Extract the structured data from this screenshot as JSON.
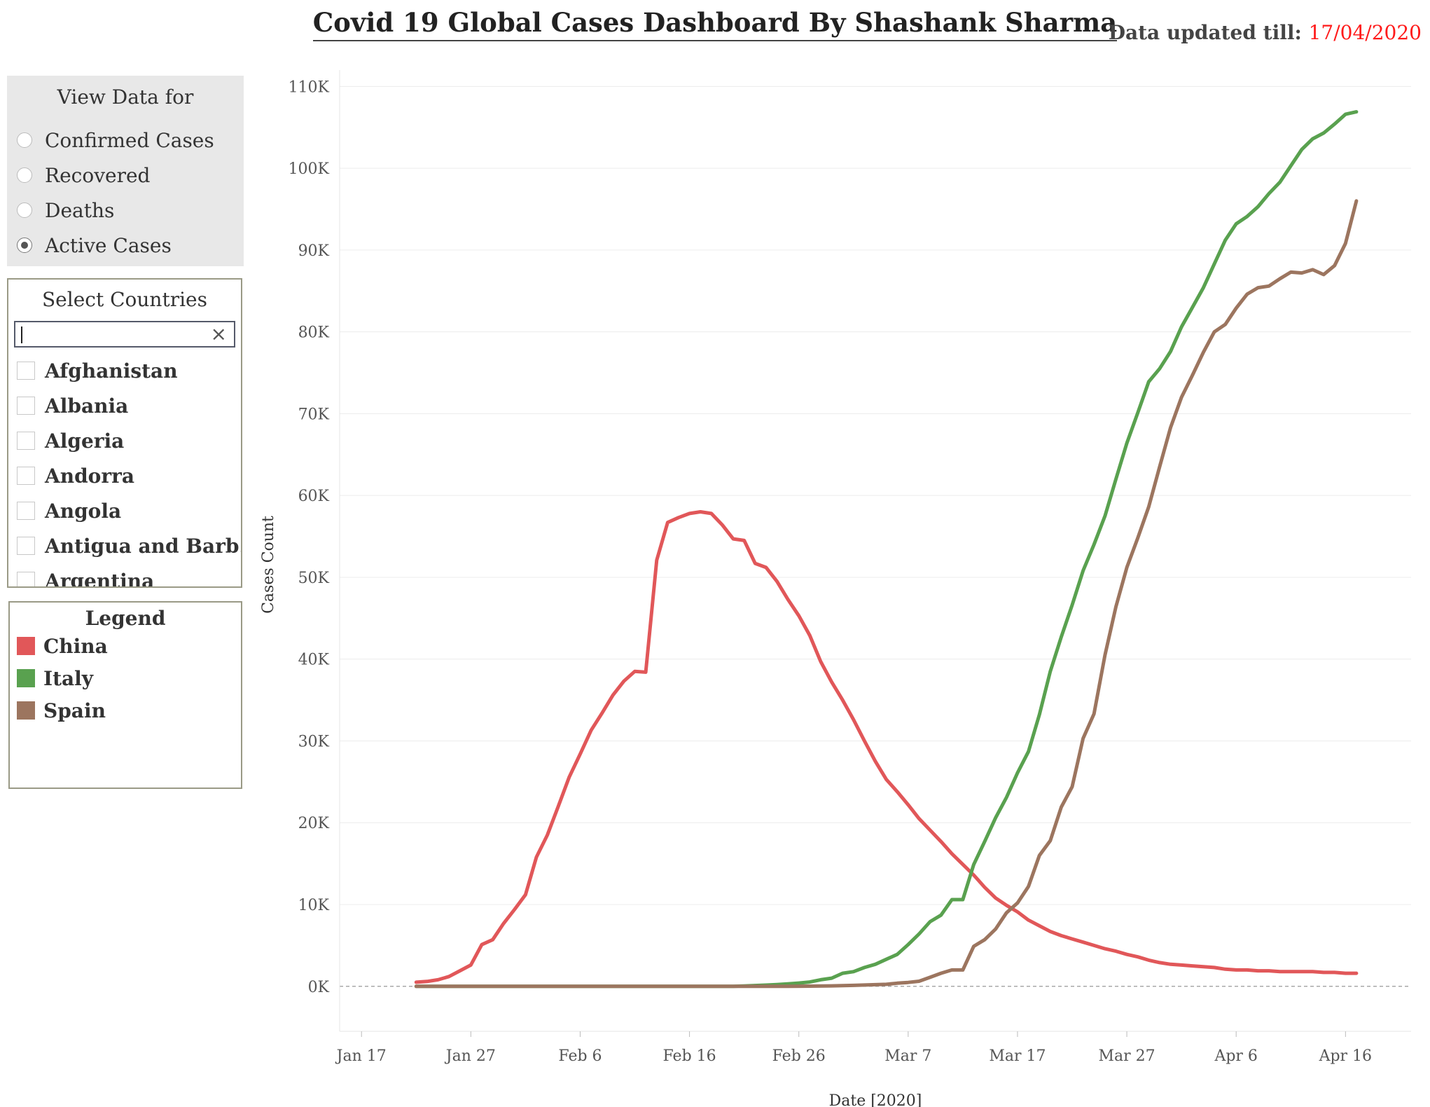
{
  "header": {
    "title": "Covid 19 Global Cases Dashboard By Shashank Sharma",
    "updated_label": "Data updated till:",
    "updated_date": "17/04/2020"
  },
  "view_panel": {
    "title": "View Data for",
    "options": [
      "Confirmed Cases",
      "Recovered",
      "Deaths",
      "Active Cases"
    ],
    "selected": "Active Cases"
  },
  "countries_panel": {
    "title": "Select Countries",
    "search_value": "",
    "clear_icon": "close-icon",
    "items": [
      "Afghanistan",
      "Albania",
      "Algeria",
      "Andorra",
      "Angola",
      "Antigua and Barb…",
      "Argentina"
    ]
  },
  "legend_panel": {
    "title": "Legend",
    "items": [
      {
        "name": "China",
        "color": "#e15759"
      },
      {
        "name": "Italy",
        "color": "#59a14f"
      },
      {
        "name": "Spain",
        "color": "#9c755f"
      }
    ]
  },
  "chart_data": {
    "type": "line",
    "title": "",
    "xlabel": "Date [2020]",
    "ylabel": "Cases Count",
    "x_ticks": [
      "Jan 17",
      "Jan 27",
      "Feb 6",
      "Feb 16",
      "Feb 26",
      "Mar 7",
      "Mar 17",
      "Mar 27",
      "Apr 6",
      "Apr 16"
    ],
    "y_ticks": [
      "0K",
      "10K",
      "20K",
      "30K",
      "40K",
      "50K",
      "60K",
      "70K",
      "80K",
      "90K",
      "100K",
      "110K"
    ],
    "ylim": [
      -5500,
      112000
    ],
    "xlim": [
      "2020-01-15",
      "2020-04-22"
    ],
    "grid": true,
    "series": [
      {
        "name": "China",
        "color": "#e15759",
        "points": [
          [
            "2020-01-22",
            500
          ],
          [
            "2020-01-23",
            600
          ],
          [
            "2020-01-24",
            800
          ],
          [
            "2020-01-25",
            1200
          ],
          [
            "2020-01-26",
            1900
          ],
          [
            "2020-01-27",
            2600
          ],
          [
            "2020-01-28",
            5100
          ],
          [
            "2020-01-29",
            5700
          ],
          [
            "2020-01-30",
            7700
          ],
          [
            "2020-01-31",
            9400
          ],
          [
            "2020-02-01",
            11200
          ],
          [
            "2020-02-02",
            15800
          ],
          [
            "2020-02-03",
            18500
          ],
          [
            "2020-02-04",
            22000
          ],
          [
            "2020-02-05",
            25600
          ],
          [
            "2020-02-06",
            28400
          ],
          [
            "2020-02-07",
            31300
          ],
          [
            "2020-02-08",
            33400
          ],
          [
            "2020-02-09",
            35600
          ],
          [
            "2020-02-10",
            37300
          ],
          [
            "2020-02-11",
            38500
          ],
          [
            "2020-02-12",
            38400
          ],
          [
            "2020-02-13",
            52100
          ],
          [
            "2020-02-14",
            56700
          ],
          [
            "2020-02-15",
            57300
          ],
          [
            "2020-02-16",
            57800
          ],
          [
            "2020-02-17",
            58000
          ],
          [
            "2020-02-18",
            57800
          ],
          [
            "2020-02-19",
            56400
          ],
          [
            "2020-02-20",
            54700
          ],
          [
            "2020-02-21",
            54500
          ],
          [
            "2020-02-22",
            51700
          ],
          [
            "2020-02-23",
            51200
          ],
          [
            "2020-02-24",
            49500
          ],
          [
            "2020-02-25",
            47300
          ],
          [
            "2020-02-26",
            45300
          ],
          [
            "2020-02-27",
            42900
          ],
          [
            "2020-02-28",
            39700
          ],
          [
            "2020-02-29",
            37200
          ],
          [
            "2020-03-01",
            35000
          ],
          [
            "2020-03-02",
            32600
          ],
          [
            "2020-03-03",
            30000
          ],
          [
            "2020-03-04",
            27500
          ],
          [
            "2020-03-05",
            25300
          ],
          [
            "2020-03-06",
            23800
          ],
          [
            "2020-03-07",
            22200
          ],
          [
            "2020-03-08",
            20500
          ],
          [
            "2020-03-09",
            19100
          ],
          [
            "2020-03-10",
            17700
          ],
          [
            "2020-03-11",
            16200
          ],
          [
            "2020-03-12",
            14900
          ],
          [
            "2020-03-13",
            13600
          ],
          [
            "2020-03-14",
            12100
          ],
          [
            "2020-03-15",
            10800
          ],
          [
            "2020-03-16",
            9900
          ],
          [
            "2020-03-17",
            9100
          ],
          [
            "2020-03-18",
            8100
          ],
          [
            "2020-03-19",
            7400
          ],
          [
            "2020-03-20",
            6700
          ],
          [
            "2020-03-21",
            6200
          ],
          [
            "2020-03-22",
            5800
          ],
          [
            "2020-03-23",
            5400
          ],
          [
            "2020-03-24",
            5000
          ],
          [
            "2020-03-25",
            4600
          ],
          [
            "2020-03-26",
            4300
          ],
          [
            "2020-03-27",
            3900
          ],
          [
            "2020-03-28",
            3600
          ],
          [
            "2020-03-29",
            3200
          ],
          [
            "2020-03-30",
            2900
          ],
          [
            "2020-03-31",
            2700
          ],
          [
            "2020-04-01",
            2600
          ],
          [
            "2020-04-02",
            2500
          ],
          [
            "2020-04-03",
            2400
          ],
          [
            "2020-04-04",
            2300
          ],
          [
            "2020-04-05",
            2100
          ],
          [
            "2020-04-06",
            2000
          ],
          [
            "2020-04-07",
            2000
          ],
          [
            "2020-04-08",
            1900
          ],
          [
            "2020-04-09",
            1900
          ],
          [
            "2020-04-10",
            1800
          ],
          [
            "2020-04-11",
            1800
          ],
          [
            "2020-04-12",
            1800
          ],
          [
            "2020-04-13",
            1800
          ],
          [
            "2020-04-14",
            1700
          ],
          [
            "2020-04-15",
            1700
          ],
          [
            "2020-04-16",
            1600
          ],
          [
            "2020-04-17",
            1600
          ]
        ]
      },
      {
        "name": "Italy",
        "color": "#59a14f",
        "points": [
          [
            "2020-01-22",
            0
          ],
          [
            "2020-02-20",
            0
          ],
          [
            "2020-02-21",
            50
          ],
          [
            "2020-02-22",
            100
          ],
          [
            "2020-02-23",
            150
          ],
          [
            "2020-02-24",
            220
          ],
          [
            "2020-02-25",
            300
          ],
          [
            "2020-02-26",
            400
          ],
          [
            "2020-02-27",
            530
          ],
          [
            "2020-02-28",
            800
          ],
          [
            "2020-02-29",
            1000
          ],
          [
            "2020-03-01",
            1600
          ],
          [
            "2020-03-02",
            1800
          ],
          [
            "2020-03-03",
            2300
          ],
          [
            "2020-03-04",
            2700
          ],
          [
            "2020-03-05",
            3300
          ],
          [
            "2020-03-06",
            3900
          ],
          [
            "2020-03-07",
            5100
          ],
          [
            "2020-03-08",
            6400
          ],
          [
            "2020-03-09",
            7900
          ],
          [
            "2020-03-10",
            8700
          ],
          [
            "2020-03-11",
            10600
          ],
          [
            "2020-03-12",
            10600
          ],
          [
            "2020-03-13",
            14900
          ],
          [
            "2020-03-14",
            17700
          ],
          [
            "2020-03-15",
            20600
          ],
          [
            "2020-03-16",
            23100
          ],
          [
            "2020-03-17",
            26100
          ],
          [
            "2020-03-18",
            28700
          ],
          [
            "2020-03-19",
            33200
          ],
          [
            "2020-03-20",
            38500
          ],
          [
            "2020-03-21",
            42700
          ],
          [
            "2020-03-22",
            46600
          ],
          [
            "2020-03-23",
            50800
          ],
          [
            "2020-03-24",
            54000
          ],
          [
            "2020-03-25",
            57500
          ],
          [
            "2020-03-26",
            62000
          ],
          [
            "2020-03-27",
            66400
          ],
          [
            "2020-03-28",
            70100
          ],
          [
            "2020-03-29",
            73900
          ],
          [
            "2020-03-30",
            75500
          ],
          [
            "2020-03-31",
            77600
          ],
          [
            "2020-04-01",
            80600
          ],
          [
            "2020-04-02",
            83000
          ],
          [
            "2020-04-03",
            85400
          ],
          [
            "2020-04-04",
            88300
          ],
          [
            "2020-04-05",
            91200
          ],
          [
            "2020-04-06",
            93200
          ],
          [
            "2020-04-07",
            94100
          ],
          [
            "2020-04-08",
            95300
          ],
          [
            "2020-04-09",
            96900
          ],
          [
            "2020-04-10",
            98300
          ],
          [
            "2020-04-11",
            100300
          ],
          [
            "2020-04-12",
            102300
          ],
          [
            "2020-04-13",
            103600
          ],
          [
            "2020-04-14",
            104300
          ],
          [
            "2020-04-15",
            105400
          ],
          [
            "2020-04-16",
            106600
          ],
          [
            "2020-04-17",
            106900
          ]
        ]
      },
      {
        "name": "Spain",
        "color": "#9c755f",
        "points": [
          [
            "2020-01-22",
            0
          ],
          [
            "2020-02-25",
            0
          ],
          [
            "2020-02-27",
            20
          ],
          [
            "2020-02-29",
            60
          ],
          [
            "2020-03-01",
            90
          ],
          [
            "2020-03-02",
            120
          ],
          [
            "2020-03-03",
            160
          ],
          [
            "2020-03-04",
            200
          ],
          [
            "2020-03-05",
            250
          ],
          [
            "2020-03-06",
            380
          ],
          [
            "2020-03-07",
            480
          ],
          [
            "2020-03-08",
            620
          ],
          [
            "2020-03-09",
            1100
          ],
          [
            "2020-03-10",
            1600
          ],
          [
            "2020-03-11",
            2000
          ],
          [
            "2020-03-12",
            2000
          ],
          [
            "2020-03-13",
            4900
          ],
          [
            "2020-03-14",
            5700
          ],
          [
            "2020-03-15",
            7000
          ],
          [
            "2020-03-16",
            9000
          ],
          [
            "2020-03-17",
            10200
          ],
          [
            "2020-03-18",
            12200
          ],
          [
            "2020-03-19",
            16000
          ],
          [
            "2020-03-20",
            17800
          ],
          [
            "2020-03-21",
            21900
          ],
          [
            "2020-03-22",
            24400
          ],
          [
            "2020-03-23",
            30300
          ],
          [
            "2020-03-24",
            33300
          ],
          [
            "2020-03-25",
            40500
          ],
          [
            "2020-03-26",
            46400
          ],
          [
            "2020-03-27",
            51200
          ],
          [
            "2020-03-28",
            54800
          ],
          [
            "2020-03-29",
            58600
          ],
          [
            "2020-03-30",
            63500
          ],
          [
            "2020-03-31",
            68300
          ],
          [
            "2020-04-01",
            72000
          ],
          [
            "2020-04-02",
            74700
          ],
          [
            "2020-04-03",
            77500
          ],
          [
            "2020-04-04",
            80000
          ],
          [
            "2020-04-05",
            80900
          ],
          [
            "2020-04-06",
            82900
          ],
          [
            "2020-04-07",
            84600
          ],
          [
            "2020-04-08",
            85400
          ],
          [
            "2020-04-09",
            85600
          ],
          [
            "2020-04-10",
            86500
          ],
          [
            "2020-04-11",
            87300
          ],
          [
            "2020-04-12",
            87200
          ],
          [
            "2020-04-13",
            87600
          ],
          [
            "2020-04-14",
            87000
          ],
          [
            "2020-04-15",
            88100
          ],
          [
            "2020-04-16",
            90800
          ],
          [
            "2020-04-17",
            96000
          ]
        ]
      }
    ]
  }
}
